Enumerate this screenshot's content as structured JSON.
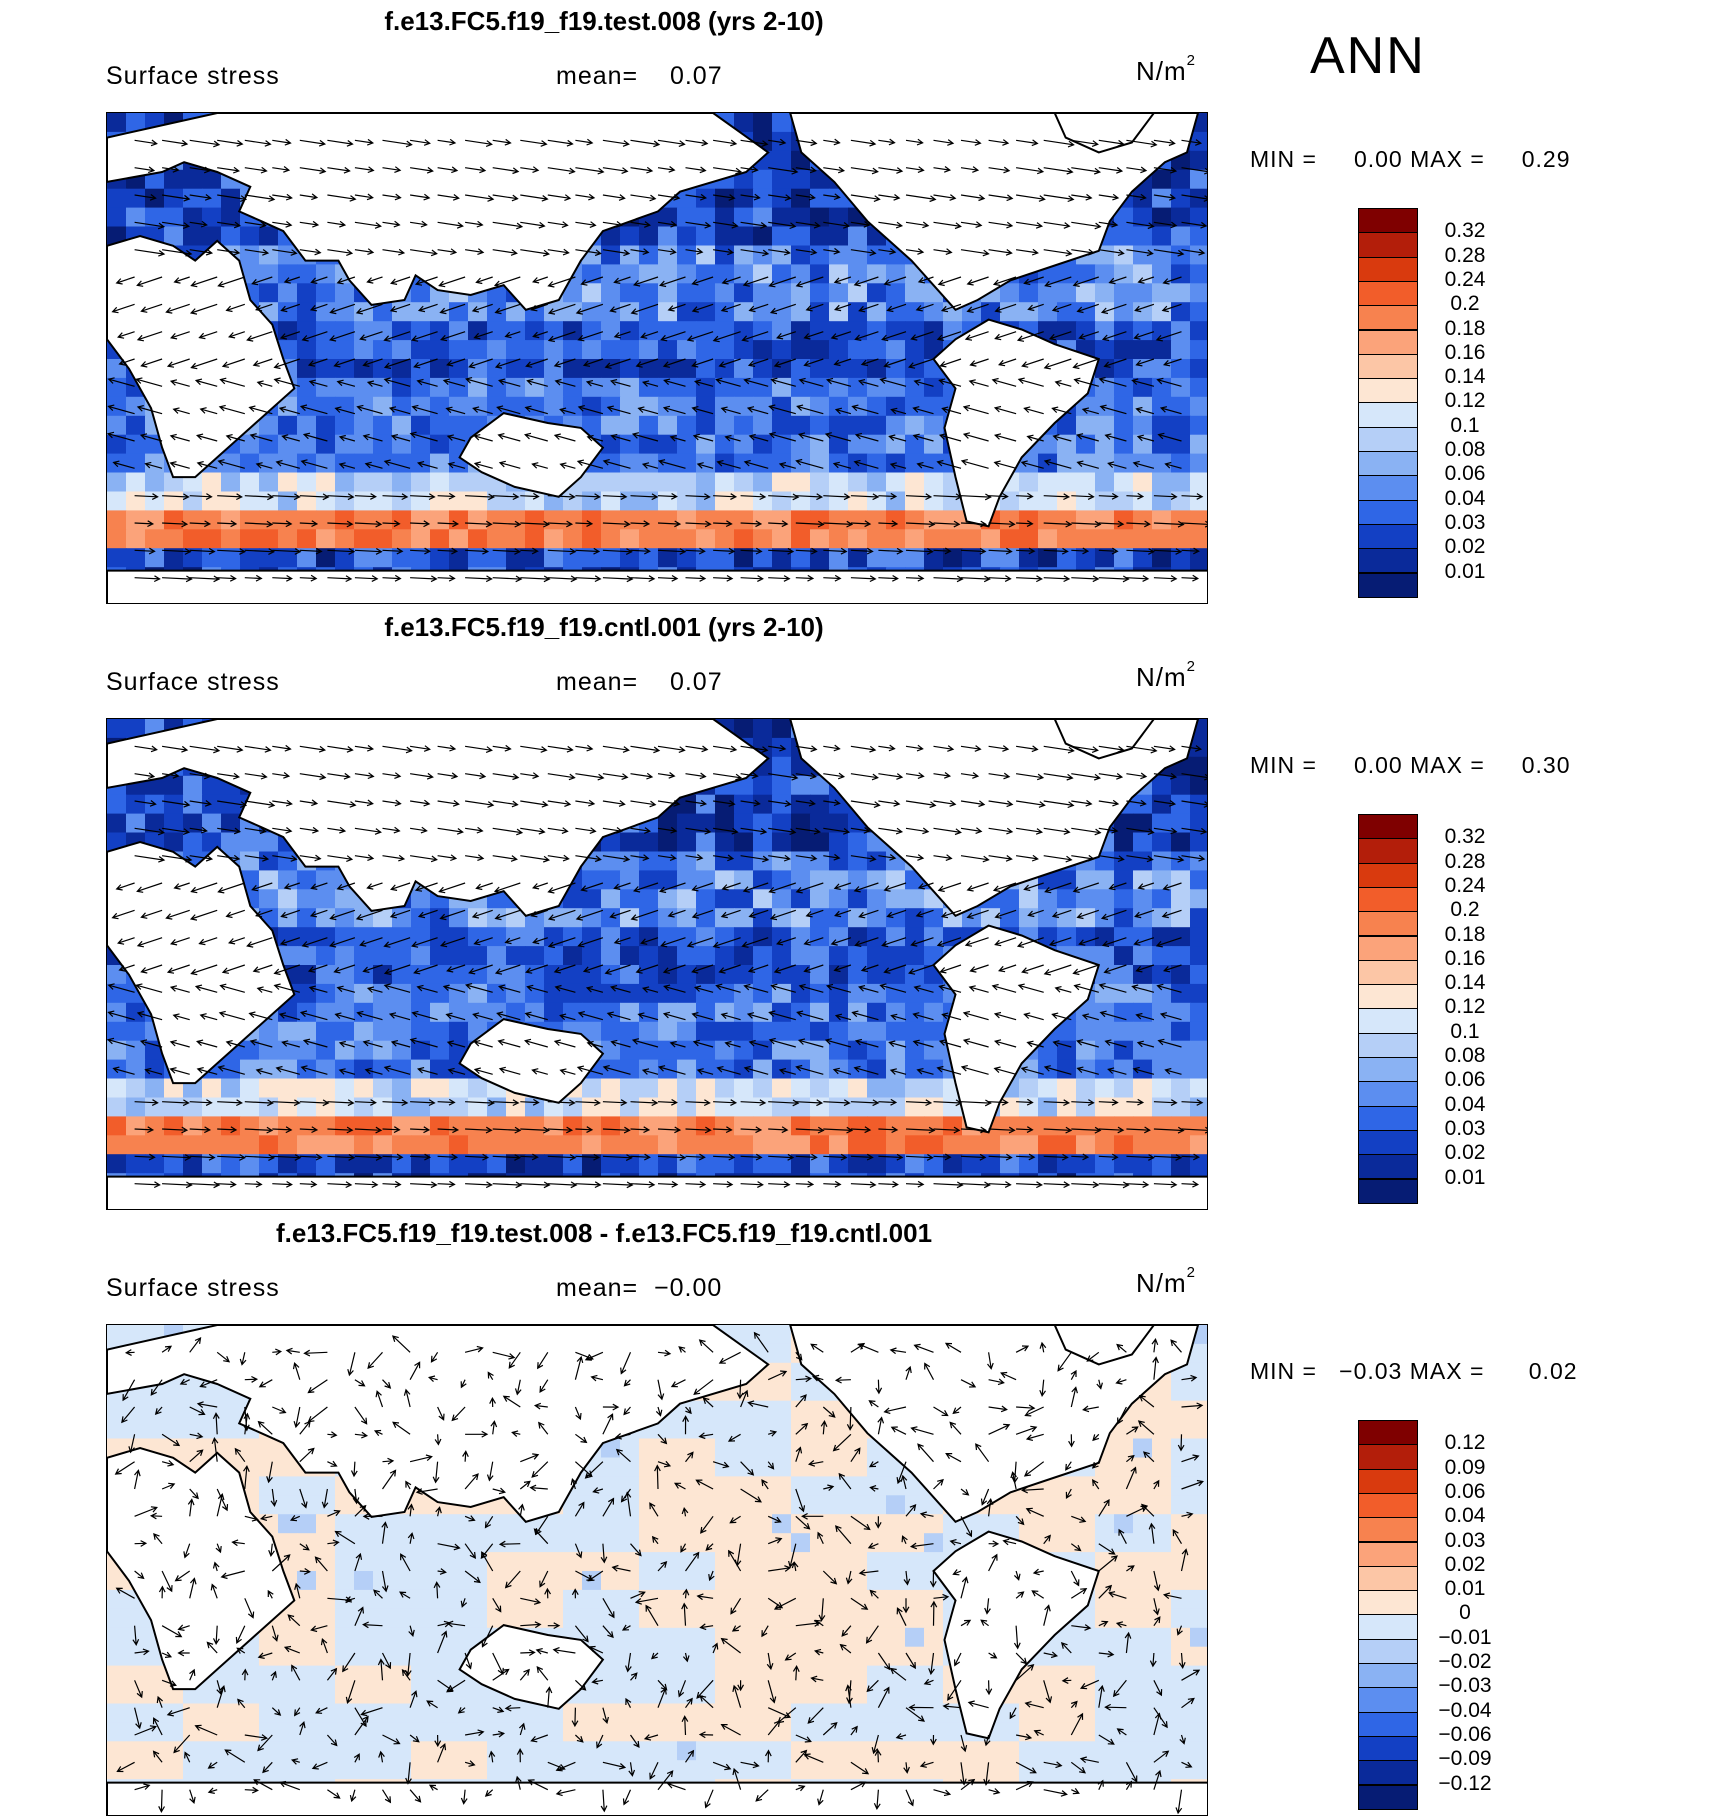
{
  "season": "ANN",
  "panels": [
    {
      "title": "f.e13.FC5.f19_f19.test.008 (yrs 2-10)",
      "variable": "Surface stress",
      "mean_label": "mean=",
      "mean_value": "0.07",
      "units": "N/m",
      "units_exp": "2",
      "min_label": "MIN =",
      "min_value": "0.00",
      "max_label": "MAX =",
      "max_value": "0.29",
      "scale": "abs",
      "colorbar_labels": [
        "0.32",
        "0.28",
        "0.24",
        "0.2",
        "0.18",
        "0.16",
        "0.14",
        "0.12",
        "0.1",
        "0.08",
        "0.06",
        "0.04",
        "0.03",
        "0.02",
        "0.01"
      ]
    },
    {
      "title": "f.e13.FC5.f19_f19.cntl.001 (yrs 2-10)",
      "variable": "Surface stress",
      "mean_label": "mean=",
      "mean_value": "0.07",
      "units": "N/m",
      "units_exp": "2",
      "min_label": "MIN =",
      "min_value": "0.00",
      "max_label": "MAX =",
      "max_value": "0.30",
      "scale": "abs",
      "colorbar_labels": [
        "0.32",
        "0.28",
        "0.24",
        "0.2",
        "0.18",
        "0.16",
        "0.14",
        "0.12",
        "0.1",
        "0.08",
        "0.06",
        "0.04",
        "0.03",
        "0.02",
        "0.01"
      ]
    },
    {
      "title": "f.e13.FC5.f19_f19.test.008 - f.e13.FC5.f19_f19.cntl.001",
      "variable": "Surface stress",
      "mean_label": "mean=",
      "mean_value": "−0.00",
      "units": "N/m",
      "units_exp": "2",
      "min_label": "MIN =",
      "min_value": "−0.03",
      "max_label": "MAX =",
      "max_value": "0.02",
      "scale": "diff",
      "colorbar_labels": [
        "0.12",
        "0.09",
        "0.06",
        "0.04",
        "0.03",
        "0.02",
        "0.01",
        "0",
        "−0.01",
        "−0.02",
        "−0.03",
        "−0.04",
        "−0.06",
        "−0.09",
        "−0.12"
      ]
    }
  ],
  "colors": {
    "abs": [
      "#7f0000",
      "#b31e0a",
      "#d93a0e",
      "#f25d2a",
      "#f7824f",
      "#fba37a",
      "#fcc6a6",
      "#fde6d3",
      "#d6e7fa",
      "#b5cff7",
      "#8ab2f3",
      "#5c8ef0",
      "#2f66e6",
      "#1340c4",
      "#0a2a9a",
      "#061c74"
    ],
    "diff": [
      "#7f0000",
      "#b31e0a",
      "#d93a0e",
      "#f25d2a",
      "#f7824f",
      "#fba37a",
      "#fcc6a6",
      "#fde6d3",
      "#d6e7fa",
      "#b5cff7",
      "#8ab2f3",
      "#5c8ef0",
      "#2f66e6",
      "#1340c4",
      "#0a2a9a",
      "#061c74"
    ],
    "land": "#ffffff",
    "coast": "#000000"
  }
}
